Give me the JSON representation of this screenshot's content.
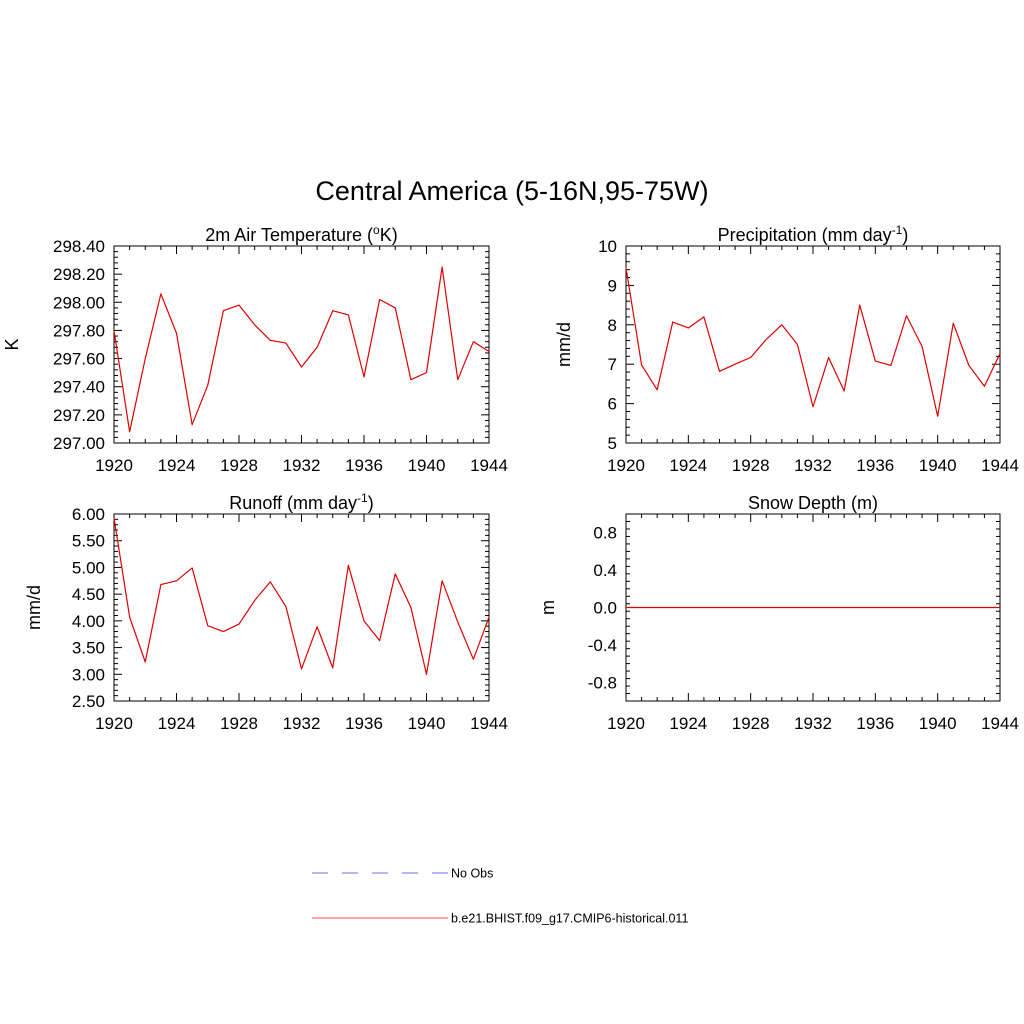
{
  "figure": {
    "title": "Central America (5-16N,95-75W)"
  },
  "chart_data": [
    {
      "type": "line",
      "title": "2m Air Temperature",
      "title_unit_base": "o",
      "title_unit_suffix": "K",
      "ylabel": "K",
      "xlabel": "",
      "xlim": [
        1920,
        1944
      ],
      "ylim": [
        297.0,
        298.4
      ],
      "x_ticks": [
        1920,
        1924,
        1928,
        1932,
        1936,
        1940,
        1944
      ],
      "y_ticks": [
        "297.00",
        "297.20",
        "297.40",
        "297.60",
        "297.80",
        "298.00",
        "298.20",
        "298.40"
      ],
      "y_tick_values": [
        297.0,
        297.2,
        297.4,
        297.6,
        297.8,
        298.0,
        298.2,
        298.4
      ],
      "grid": false,
      "series": [
        {
          "color": "#e00000",
          "x": [
            1920,
            1921,
            1922,
            1923,
            1924,
            1925,
            1926,
            1927,
            1928,
            1929,
            1930,
            1931,
            1932,
            1933,
            1934,
            1935,
            1936,
            1937,
            1938,
            1939,
            1940,
            1941,
            1942,
            1943,
            1944
          ],
          "values": [
            297.8,
            297.08,
            297.6,
            298.06,
            297.78,
            297.13,
            297.41,
            297.94,
            297.98,
            297.84,
            297.73,
            297.71,
            297.54,
            297.68,
            297.94,
            297.91,
            297.47,
            298.02,
            297.96,
            297.45,
            297.5,
            298.25,
            297.45,
            297.72,
            297.65
          ]
        }
      ]
    },
    {
      "type": "line",
      "title": "Precipitation (mm day",
      "title_sup": "-1",
      "title_tail": ")",
      "ylabel": "mm/d",
      "xlabel": "",
      "xlim": [
        1920,
        1944
      ],
      "ylim": [
        5,
        10
      ],
      "x_ticks": [
        1920,
        1924,
        1928,
        1932,
        1936,
        1940,
        1944
      ],
      "y_ticks": [
        "5",
        "6",
        "7",
        "8",
        "9",
        "10"
      ],
      "y_tick_values": [
        5,
        6,
        7,
        8,
        9,
        10
      ],
      "grid": false,
      "series": [
        {
          "color": "#e00000",
          "x": [
            1920,
            1921,
            1922,
            1923,
            1924,
            1925,
            1926,
            1927,
            1928,
            1929,
            1930,
            1931,
            1932,
            1933,
            1934,
            1935,
            1936,
            1937,
            1938,
            1939,
            1940,
            1941,
            1942,
            1943,
            1944
          ],
          "values": [
            9.45,
            6.98,
            6.35,
            8.07,
            7.92,
            8.2,
            6.82,
            7.0,
            7.17,
            7.63,
            8.0,
            7.5,
            5.92,
            7.17,
            6.32,
            8.5,
            7.08,
            6.97,
            8.23,
            7.45,
            5.68,
            8.04,
            6.97,
            6.44,
            7.27
          ]
        }
      ]
    },
    {
      "type": "line",
      "title": "Runoff (mm day",
      "title_sup": "-1",
      "title_tail": ")",
      "ylabel": "mm/d",
      "xlabel": "",
      "xlim": [
        1920,
        1944
      ],
      "ylim": [
        2.5,
        6.0
      ],
      "x_ticks": [
        1920,
        1924,
        1928,
        1932,
        1936,
        1940,
        1944
      ],
      "y_ticks": [
        "2.50",
        "3.00",
        "3.50",
        "4.00",
        "4.50",
        "5.00",
        "5.50",
        "6.00"
      ],
      "y_tick_values": [
        2.5,
        3.0,
        3.5,
        4.0,
        4.5,
        5.0,
        5.5,
        6.0
      ],
      "grid": false,
      "series": [
        {
          "color": "#e00000",
          "x": [
            1920,
            1921,
            1922,
            1923,
            1924,
            1925,
            1926,
            1927,
            1928,
            1929,
            1930,
            1931,
            1932,
            1933,
            1934,
            1935,
            1936,
            1937,
            1938,
            1939,
            1940,
            1941,
            1942,
            1943,
            1944
          ],
          "values": [
            5.93,
            4.07,
            3.23,
            4.68,
            4.75,
            4.99,
            3.91,
            3.8,
            3.94,
            4.38,
            4.73,
            4.27,
            3.1,
            3.89,
            3.12,
            5.04,
            4.0,
            3.63,
            4.88,
            4.25,
            3.0,
            4.75,
            3.98,
            3.28,
            4.07
          ]
        }
      ]
    },
    {
      "type": "line",
      "title": "Snow Depth (m)",
      "ylabel": "m",
      "xlabel": "",
      "xlim": [
        1920,
        1944
      ],
      "ylim": [
        -1.0,
        1.0
      ],
      "x_ticks": [
        1920,
        1924,
        1928,
        1932,
        1936,
        1940,
        1944
      ],
      "y_ticks": [
        "-0.8",
        "-0.4",
        "0.0",
        "0.4",
        "0.8"
      ],
      "y_tick_values": [
        -0.8,
        -0.4,
        0.0,
        0.4,
        0.8
      ],
      "grid": false,
      "series": [
        {
          "color": "#e00000",
          "x": [
            1920,
            1944
          ],
          "values": [
            0.0,
            0.0
          ]
        }
      ]
    }
  ],
  "legend": {
    "placement": "bottom",
    "entries": [
      {
        "label": "No Obs",
        "color": "#8c8cf0",
        "style": "dashed"
      },
      {
        "label": "b.e21.BHIST.f09_g17.CMIP6-historical.011",
        "color": "#ff6f6f",
        "style": "solid"
      }
    ]
  }
}
